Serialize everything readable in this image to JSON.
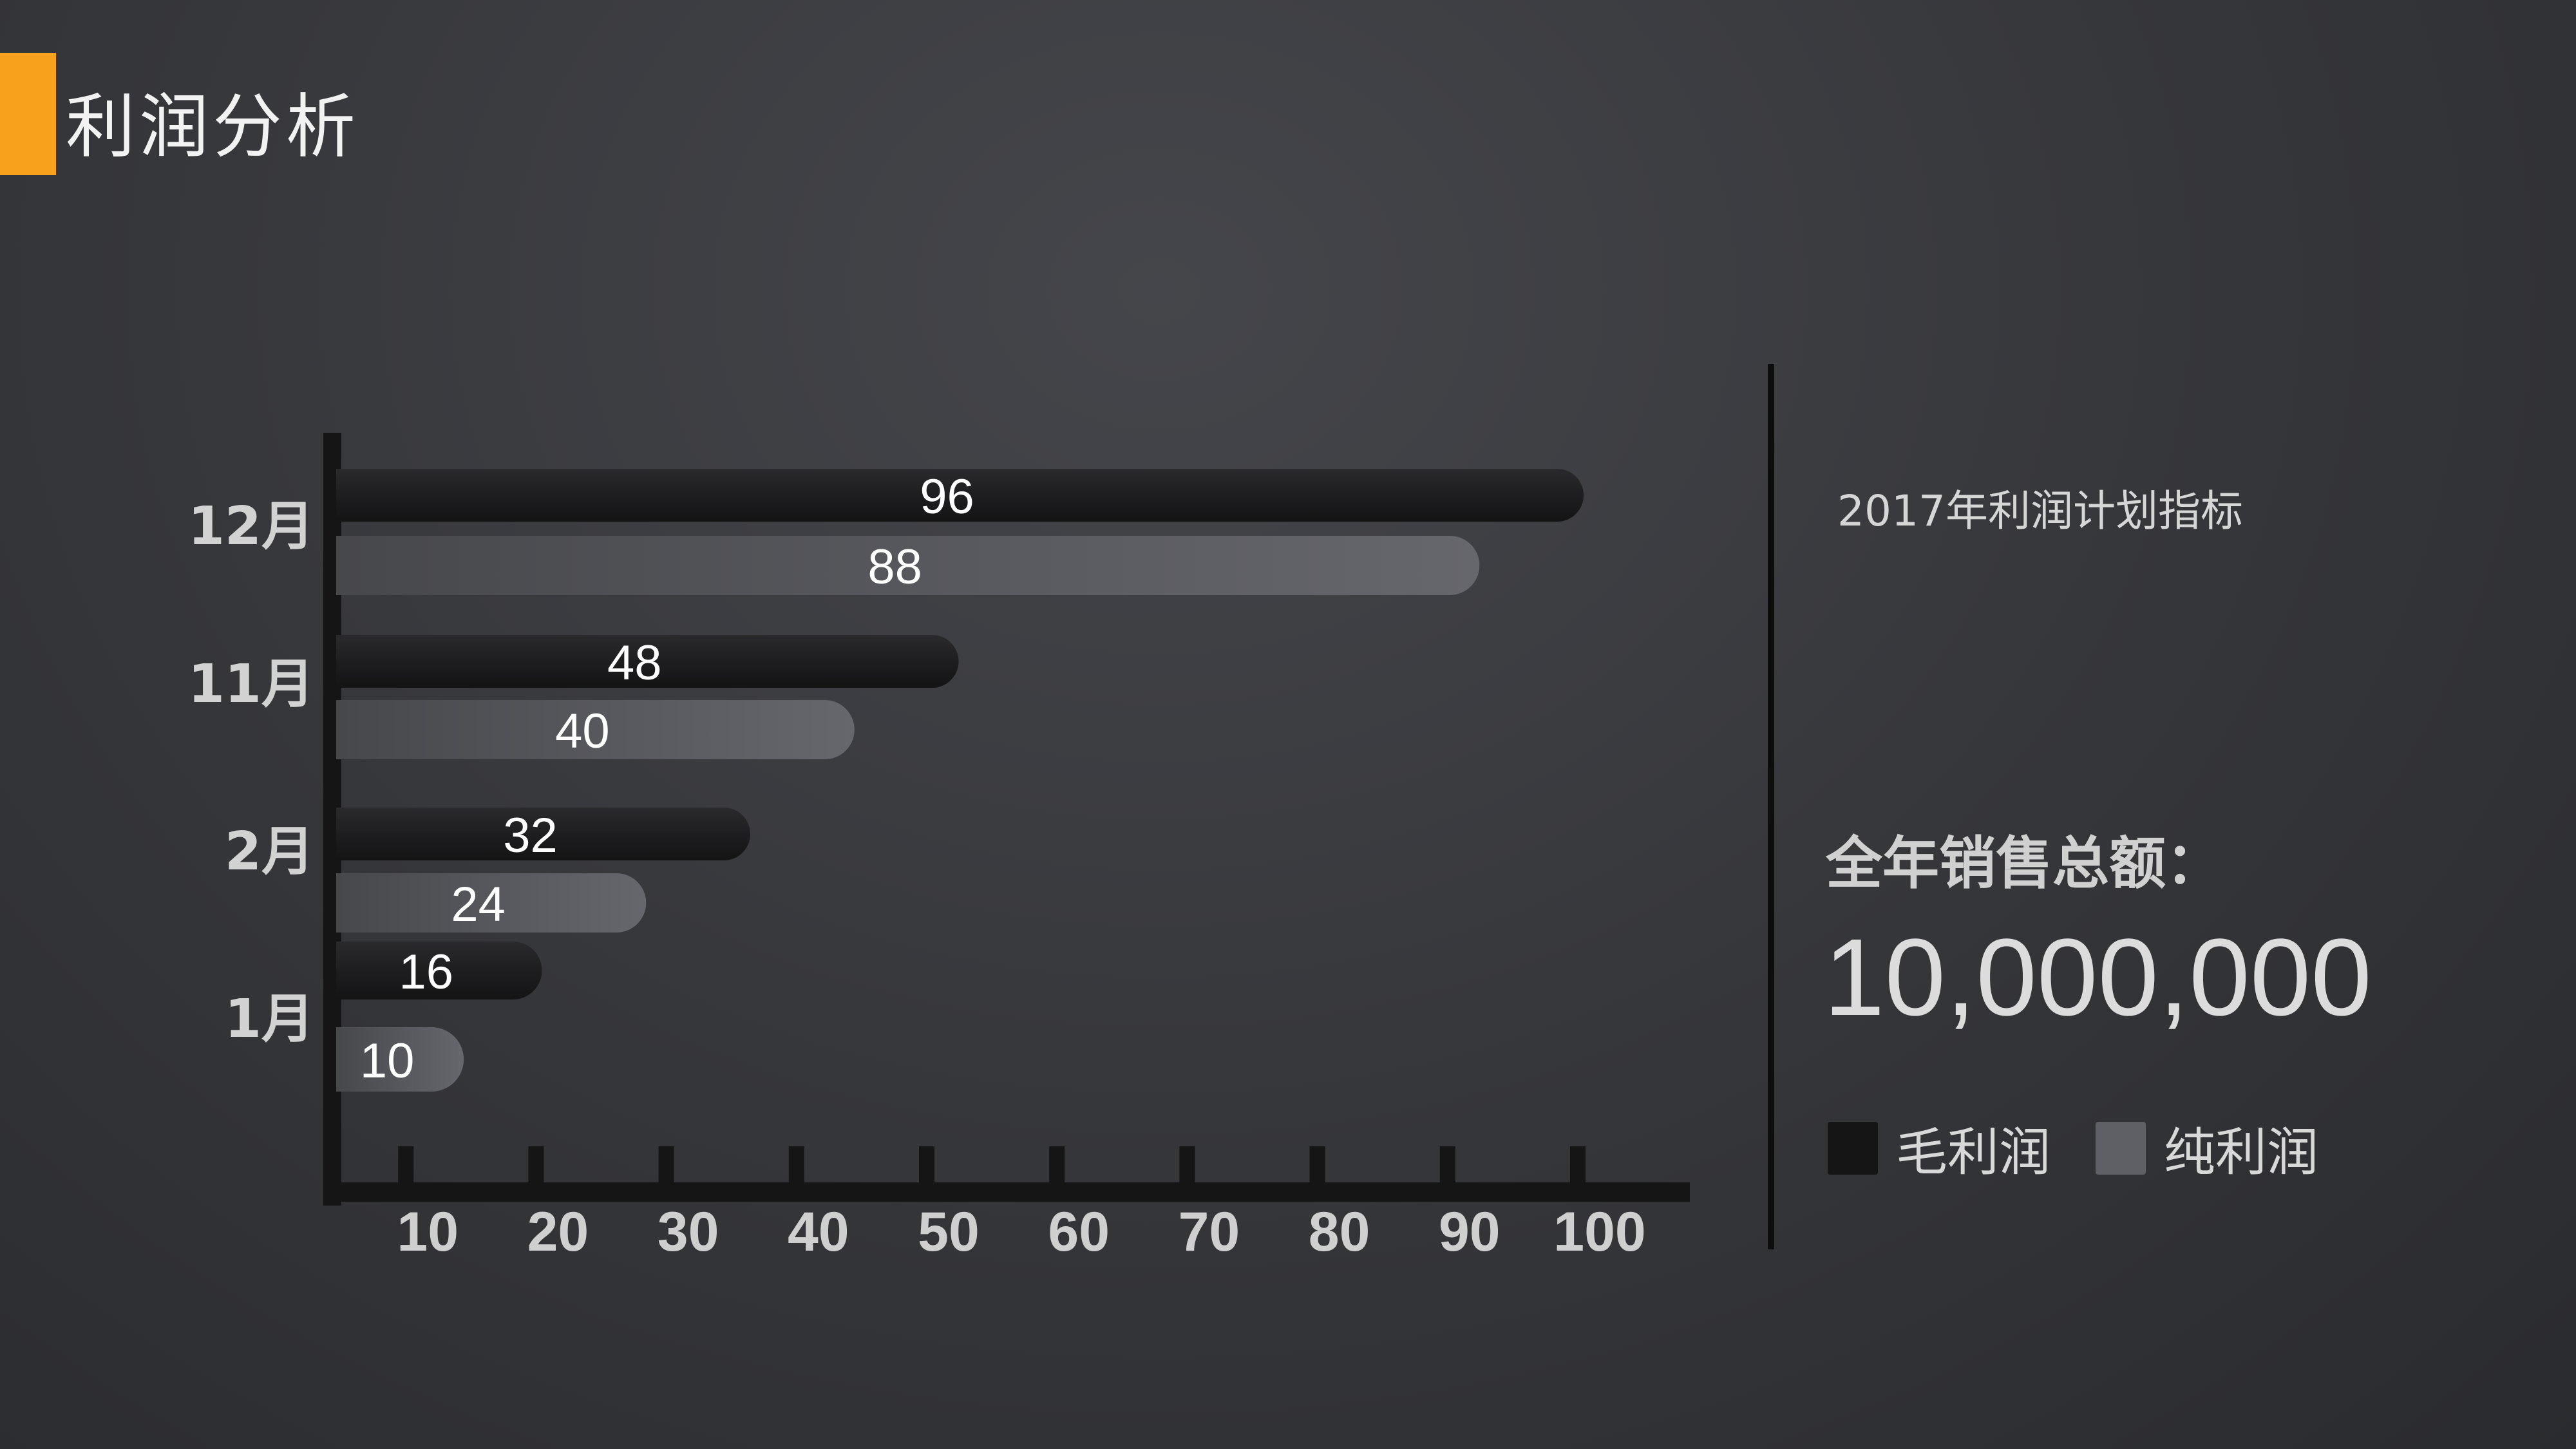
{
  "slide": {
    "title": "利润分析",
    "accent_color": "#f7a11c"
  },
  "panel": {
    "subtitle": "2017年利润计划指标",
    "total_label": "全年销售总额：",
    "total_value": "10,000,000"
  },
  "chart_data": {
    "type": "bar",
    "orientation": "horizontal",
    "categories": [
      "12月",
      "11月",
      "2月",
      "1月"
    ],
    "series": [
      {
        "name": "毛利润",
        "values": [
          96,
          48,
          32,
          16
        ],
        "color": "#1e1e20"
      },
      {
        "name": "纯利润",
        "values": [
          88,
          40,
          24,
          10
        ],
        "color": "#5a5b61"
      }
    ],
    "x_ticks": [
      10,
      20,
      30,
      40,
      50,
      60,
      70,
      80,
      90,
      100
    ],
    "xlim": [
      0,
      100
    ],
    "legend_position": "bottom-right"
  }
}
